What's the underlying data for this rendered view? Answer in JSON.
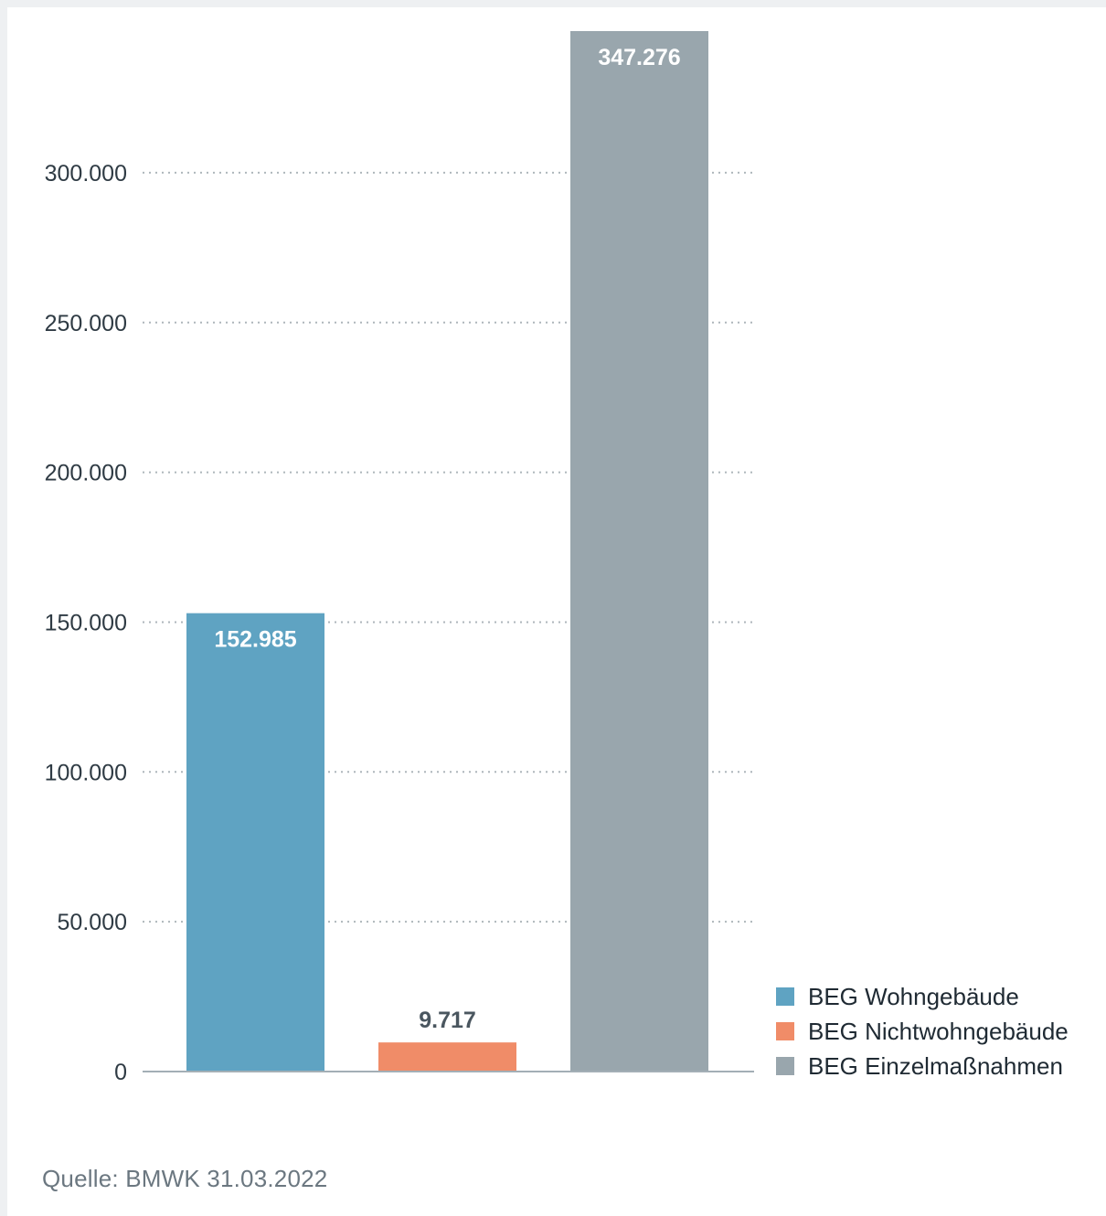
{
  "chart_data": {
    "type": "bar",
    "categories": [
      "BEG Wohngebäude",
      "BEG Nichtwohngebäude",
      "BEG Einzelmaßnahmen"
    ],
    "values": [
      152985,
      9717,
      347276
    ],
    "value_labels": [
      "152.985",
      "9.717",
      "347.276"
    ],
    "colors": [
      "#5fa3c2",
      "#f08c68",
      "#99a6ad"
    ],
    "ylim": [
      0,
      347276
    ],
    "yticks": [
      0,
      50000,
      100000,
      150000,
      200000,
      250000,
      300000
    ],
    "ytick_labels": [
      "0",
      "50.000",
      "100.000",
      "150.000",
      "200.000",
      "250.000",
      "300.000"
    ],
    "grid": true,
    "legend": {
      "position": "bottom-right",
      "entries": [
        "BEG Wohngebäude",
        "BEG Nichtwohngebäude",
        "BEG Einzelmaßnahmen"
      ]
    }
  },
  "source": "Quelle: BMWK 31.03.2022"
}
